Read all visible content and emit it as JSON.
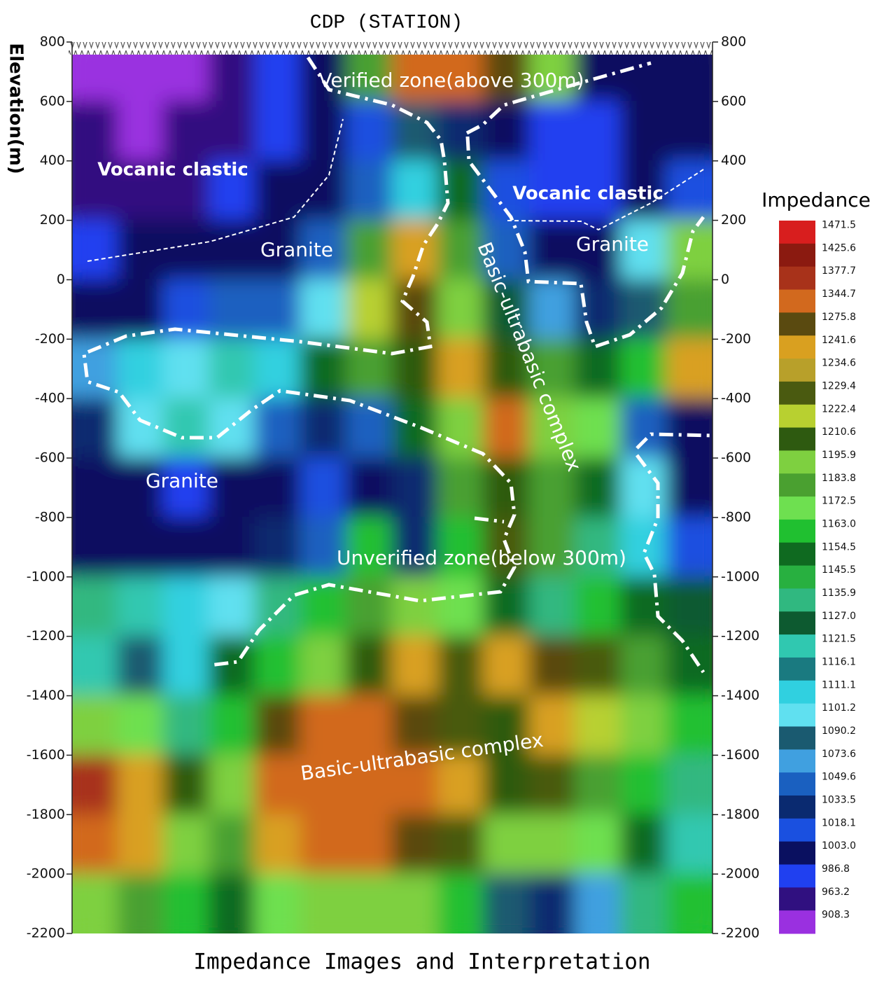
{
  "chart_data": {
    "type": "heatmap",
    "title": "Impedance Images and Interpretation",
    "xlabel": "CDP (STATION)",
    "ylabel": "Elevation(m)",
    "ylim": [
      -2200,
      800
    ],
    "yticks": [
      800,
      600,
      400,
      200,
      0,
      -200,
      -400,
      -600,
      -800,
      -1000,
      -1200,
      -1400,
      -1600,
      -1800,
      -2000,
      -2200
    ],
    "y": [
      700,
      500,
      300,
      100,
      -100,
      -300,
      -500,
      -700,
      -900,
      -1100,
      -1300,
      -1500,
      -1700,
      -1900,
      -2100
    ],
    "z": [
      [
        930,
        920,
        930,
        960,
        990,
        1003,
        1180,
        1330,
        1340,
        1300,
        1200,
        1010,
        1000,
        1003
      ],
      [
        940,
        930,
        945,
        970,
        990,
        1003,
        1020,
        1090,
        1040,
        1003,
        990,
        990,
        995,
        1000
      ],
      [
        960,
        955,
        965,
        980,
        995,
        1010,
        1050,
        1110,
        1150,
        1020,
        990,
        990,
        1000,
        1020
      ],
      [
        990,
        995,
        1000,
        1003,
        1010,
        1060,
        1180,
        1240,
        1180,
        1050,
        1010,
        1003,
        1100,
        1200
      ],
      [
        1000,
        1003,
        1018,
        1050,
        1060,
        1101,
        1220,
        1260,
        1200,
        1130,
        1080,
        1030,
        1090,
        1180
      ],
      [
        1080,
        1110,
        1100,
        1120,
        1110,
        1150,
        1180,
        1210,
        1240,
        1210,
        1180,
        1150,
        1160,
        1250
      ],
      [
        1030,
        1100,
        1120,
        1100,
        1050,
        1030,
        1060,
        1150,
        1200,
        1340,
        1200,
        1170,
        1050,
        1010
      ],
      [
        1003,
        995,
        990,
        1003,
        1010,
        1018,
        1003,
        1030,
        1180,
        1210,
        1180,
        1150,
        1100,
        1003
      ],
      [
        1003,
        1000,
        995,
        1010,
        1030,
        1050,
        1160,
        1040,
        1160,
        1230,
        1180,
        1140,
        1110,
        1020
      ],
      [
        1140,
        1120,
        1110,
        1100,
        1135,
        1160,
        1180,
        1200,
        1170,
        1150,
        1140,
        1160,
        1150,
        1130
      ],
      [
        1120,
        1090,
        1110,
        1150,
        1160,
        1200,
        1210,
        1240,
        1230,
        1250,
        1260,
        1230,
        1180,
        1150
      ],
      [
        1190,
        1170,
        1140,
        1160,
        1260,
        1330,
        1340,
        1300,
        1230,
        1210,
        1240,
        1220,
        1190,
        1160
      ],
      [
        1380,
        1240,
        1210,
        1200,
        1340,
        1360,
        1330,
        1350,
        1240,
        1210,
        1230,
        1180,
        1160,
        1140
      ],
      [
        1340,
        1240,
        1200,
        1180,
        1250,
        1340,
        1330,
        1280,
        1230,
        1200,
        1190,
        1170,
        1150,
        1120
      ],
      [
        1200,
        1180,
        1160,
        1150,
        1170,
        1190,
        1200,
        1190,
        1160,
        1090,
        1040,
        1080,
        1140,
        1160
      ]
    ],
    "colorbar": {
      "title": "Impedance",
      "levels": [
        1471.5,
        1425.6,
        1377.7,
        1344.7,
        1275.8,
        1241.6,
        1234.6,
        1229.4,
        1222.4,
        1210.6,
        1195.9,
        1183.8,
        1172.5,
        {
          "value": 1163,
          "label": "1163.0"
        },
        1154.5,
        1145.5,
        1135.9,
        {
          "value": 1127,
          "label": "1127.0"
        },
        1121.5,
        1116.1,
        1111.1,
        1101.2,
        1090.2,
        1073.6,
        1049.6,
        1033.5,
        1018.1,
        {
          "value": 1003,
          "label": "1003.0"
        },
        986.8,
        963.2,
        908.3
      ],
      "colors": [
        "#d81e1e",
        "#8b1a10",
        "#a8321a",
        "#d2691e",
        "#5a4a10",
        "#d9a020",
        "#b8a02a",
        "#4a5a10",
        "#b8d030",
        "#2e5a10",
        "#7ed040",
        "#4aa030",
        "#6ee050",
        "#20c030",
        "#0f6a20",
        "#28b040",
        "#30b880",
        "#0d5a30",
        "#30c8b0",
        "#1a7a80",
        "#30d0e0",
        "#60e0f0",
        "#1a5a70",
        "#40a0e0",
        "#1a60c0",
        "#0a2a70",
        "#1a50e0",
        "#0a1060",
        "#2040f0",
        "#301080",
        "#9a30e0"
      ]
    },
    "annotations": [
      "Verified zone(above 300m)",
      "Vocanic clastic",
      "Vocanic clastic",
      "Granite",
      "Granite",
      "Granite",
      "Basic-ultrabasic complex",
      "Unverified zone(below 300m)",
      "Basic-ultrabasic complex"
    ]
  }
}
